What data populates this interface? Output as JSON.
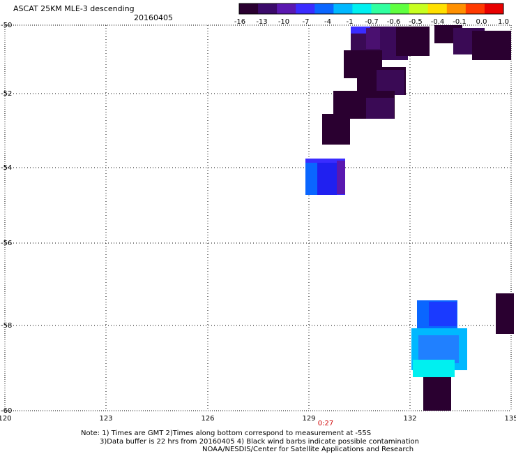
{
  "header": {
    "title": "ASCAT 25KM MLE-3 descending",
    "date": "20160405"
  },
  "colorbar": {
    "colors": [
      "#2a0030",
      "#3b0a6a",
      "#5a18b0",
      "#3a2cff",
      "#0a66ff",
      "#00b8ff",
      "#00f0f0",
      "#30ffa0",
      "#60ff40",
      "#c8ff20",
      "#ffe000",
      "#ff9000",
      "#ff3a00",
      "#e80000"
    ],
    "labels": [
      "-16",
      "-13",
      "-10",
      "-7",
      "-4",
      "-1",
      "-0.7",
      "-0.6",
      "-0.5",
      "-0.4",
      "-0.1",
      "0.0",
      "1.0"
    ]
  },
  "map": {
    "lon_ticks": [
      "120",
      "123",
      "126",
      "129",
      "132",
      "135"
    ],
    "lat_ticks": [
      "-50",
      "-52",
      "-54",
      "-56",
      "-58",
      "-60"
    ],
    "time_label": "0:27",
    "time_color": "#d00000"
  },
  "notes": {
    "line1": "Note: 1) Times are GMT 2)Times along bottom correspond to measurement at -55S",
    "line2": "3)Data buffer is 22 hrs from 20160405 4) Black wind barbs indicate possible contamination",
    "line3": "NOAA/NESDIS/Center for Satellite Applications and Research"
  }
}
